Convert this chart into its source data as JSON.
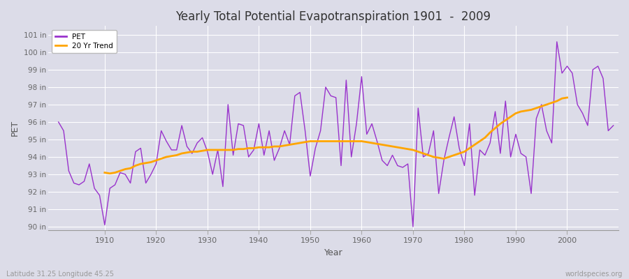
{
  "title": "Yearly Total Potential Evapotranspiration 1901  -  2009",
  "xlabel": "Year",
  "ylabel": "PET",
  "footnote_left": "Latitude 31.25 Longitude 45.25",
  "footnote_right": "worldspecies.org",
  "pet_color": "#9933cc",
  "trend_color": "#FFA500",
  "bg_color": "#dcdce8",
  "plot_bg_color": "#dcdce8",
  "ylim": [
    89.8,
    101.5
  ],
  "ytick_labels": [
    "90 in",
    "91 in",
    "92 in",
    "93 in",
    "94 in",
    "95 in",
    "96 in",
    "97 in",
    "98 in",
    "99 in",
    "100 in",
    "101 in"
  ],
  "ytick_values": [
    90,
    91,
    92,
    93,
    94,
    95,
    96,
    97,
    98,
    99,
    100,
    101
  ],
  "years": [
    1901,
    1902,
    1903,
    1904,
    1905,
    1906,
    1907,
    1908,
    1909,
    1910,
    1911,
    1912,
    1913,
    1914,
    1915,
    1916,
    1917,
    1918,
    1919,
    1920,
    1921,
    1922,
    1923,
    1924,
    1925,
    1926,
    1927,
    1928,
    1929,
    1930,
    1931,
    1932,
    1933,
    1934,
    1935,
    1936,
    1937,
    1938,
    1939,
    1940,
    1941,
    1942,
    1943,
    1944,
    1945,
    1946,
    1947,
    1948,
    1949,
    1950,
    1951,
    1952,
    1953,
    1954,
    1955,
    1956,
    1957,
    1958,
    1959,
    1960,
    1961,
    1962,
    1963,
    1964,
    1965,
    1966,
    1967,
    1968,
    1969,
    1970,
    1971,
    1972,
    1973,
    1974,
    1975,
    1976,
    1977,
    1978,
    1979,
    1980,
    1981,
    1982,
    1983,
    1984,
    1985,
    1986,
    1987,
    1988,
    1989,
    1990,
    1991,
    1992,
    1993,
    1994,
    1995,
    1996,
    1997,
    1998,
    1999,
    2000,
    2001,
    2002,
    2003,
    2004,
    2005,
    2006,
    2007,
    2008,
    2009
  ],
  "pet_values": [
    96.0,
    95.5,
    93.2,
    92.5,
    92.4,
    92.6,
    93.6,
    92.2,
    91.8,
    90.1,
    92.2,
    92.4,
    93.1,
    93.0,
    92.5,
    94.3,
    94.5,
    92.5,
    93.0,
    93.6,
    95.5,
    94.9,
    94.4,
    94.4,
    95.8,
    94.6,
    94.2,
    94.8,
    95.1,
    94.3,
    93.0,
    94.4,
    92.3,
    97.0,
    94.1,
    95.9,
    95.8,
    94.0,
    94.4,
    95.9,
    94.1,
    95.5,
    93.8,
    94.5,
    95.5,
    94.7,
    97.5,
    97.7,
    95.5,
    92.9,
    94.5,
    95.5,
    98.0,
    97.5,
    97.4,
    93.5,
    98.4,
    94.0,
    95.9,
    98.6,
    95.3,
    95.9,
    94.9,
    93.8,
    93.5,
    94.1,
    93.5,
    93.4,
    93.6,
    90.0,
    96.8,
    94.0,
    94.2,
    95.5,
    91.9,
    93.8,
    95.1,
    96.3,
    94.5,
    93.5,
    95.9,
    91.8,
    94.4,
    94.1,
    94.8,
    96.6,
    94.2,
    97.2,
    94.0,
    95.3,
    94.2,
    94.0,
    91.9,
    96.2,
    97.0,
    95.5,
    94.8,
    100.6,
    98.8,
    99.2,
    98.8,
    97.0,
    96.5,
    95.8,
    99.0,
    99.2,
    98.5,
    95.5,
    95.8
  ],
  "trend_values_years": [
    1910,
    1911,
    1912,
    1913,
    1914,
    1915,
    1916,
    1917,
    1918,
    1919,
    1920,
    1921,
    1922,
    1923,
    1924,
    1925,
    1926,
    1927,
    1928,
    1929,
    1930,
    1931,
    1932,
    1933,
    1934,
    1935,
    1936,
    1937,
    1938,
    1939,
    1940,
    1941,
    1942,
    1943,
    1944,
    1945,
    1946,
    1947,
    1948,
    1949,
    1950,
    1951,
    1952,
    1953,
    1954,
    1955,
    1956,
    1957,
    1958,
    1959,
    1960,
    1961,
    1962,
    1963,
    1964,
    1965,
    1966,
    1967,
    1968,
    1969,
    1970,
    1971,
    1972,
    1973,
    1974,
    1975,
    1976,
    1977,
    1978,
    1979,
    1980,
    1981,
    1982,
    1983,
    1984,
    1985,
    1986,
    1987,
    1988,
    1989,
    1990,
    1991,
    1992,
    1993,
    1994,
    1995,
    1996,
    1997,
    1998,
    1999,
    2000
  ],
  "trend_values": [
    93.1,
    93.05,
    93.1,
    93.2,
    93.3,
    93.35,
    93.5,
    93.6,
    93.65,
    93.7,
    93.8,
    93.9,
    94.0,
    94.05,
    94.1,
    94.2,
    94.25,
    94.3,
    94.3,
    94.35,
    94.4,
    94.4,
    94.4,
    94.4,
    94.4,
    94.4,
    94.45,
    94.45,
    94.5,
    94.5,
    94.55,
    94.55,
    94.55,
    94.6,
    94.6,
    94.65,
    94.7,
    94.75,
    94.8,
    94.85,
    94.9,
    94.9,
    94.9,
    94.9,
    94.9,
    94.9,
    94.9,
    94.9,
    94.9,
    94.9,
    94.9,
    94.85,
    94.8,
    94.75,
    94.7,
    94.65,
    94.6,
    94.55,
    94.5,
    94.45,
    94.4,
    94.3,
    94.2,
    94.1,
    94.0,
    93.95,
    93.9,
    94.0,
    94.1,
    94.2,
    94.3,
    94.5,
    94.7,
    94.9,
    95.1,
    95.4,
    95.65,
    95.9,
    96.1,
    96.3,
    96.5,
    96.6,
    96.65,
    96.7,
    96.8,
    96.9,
    97.0,
    97.1,
    97.2,
    97.35,
    97.4
  ]
}
